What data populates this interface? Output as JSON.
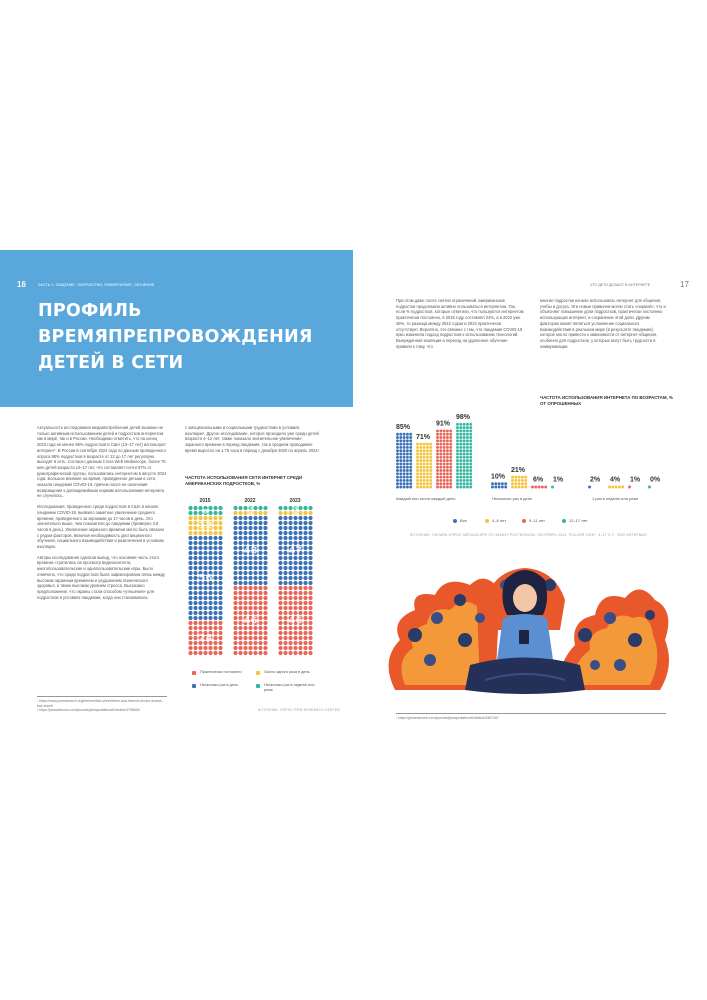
{
  "left_page": {
    "page_number": "16",
    "running_header": "ЧАСТЬ 1. ОБЩЕНИЕ, ТВОРЧЕСТВО, РАЗВЛЕЧЕНИЕ, ОБУЧЕНИЕ",
    "title_lines": [
      "ПРОФИЛЬ",
      "ВРЕМЯПРЕПРОВОЖДЕНИЯ",
      "ДЕТЕЙ В СЕТИ"
    ],
    "col1_paragraphs": [
      "Актуальность исследования медиапотребления детей вызвано не только активным использованием детей и подростков интернетом как в мире, так и в России. Необходимо отметить, что на конец 2023 года не менее 96% подростков в США (13–17 лет) используют интернет¹. В России в сентябре 2024 года по данным проведенного опроса 98% подростков в возрасте от 12 до 17 лет регулярно выходят в сеть. Согласно данным Cross Web Mediascope, более 75 млн детей возраста 12–17 лет, что составляет почти 97% от демографической группы, пользовались интернетом в августе 2024 года. Большое влияние на время, проведенное детьми в сети, оказала пандемия COVID-19, причем после ее окончания возвращения к доландемийным нормам использования интернета не случилось.",
      "Исследования, проведенное среди подростков в США в начале пандемии COVID-19, выявило заметное увеличение среднего времени, проведенного за экранами до 17 часов в день. Это значительно выше, чем показатели до пандемии (примерно 3.8 часов в день). Увеличение экранного времени могло быть связано с рядом факторов, включая необходимость дистанционного обучения, социального взаимодействия и развлечения в условиях изоляции.",
      "Авторы исследования сделали вывод, что основная часть этого времени «тратилась на просмотр видеоконтента, многопользовательские и однопользовательские игры. Было отмечено, что среди подростков была зафиксирована связь между высоким экранным временем и ухудшением психического здоровья, а также высоким уровнем стресса. Высказано предположение, что экраны стали способом «утешения» для подростков в условиях пандемии, когда они сталкивались"
    ],
    "col2_paragraph": "с эмоциональными и социальными трудностями в условиях изоляции¹. Другое исследование, которое проходило уже среди детей возраста 4–12 лет, также показало значительное увеличение экранного времени в период пандемии, так в среднем проводимое время выросло на 1.75 часа в период с декабря 2020 по апрель 2021².",
    "footnotes": [
      "¹ https://www.pewresearch.org/internet/fact-sheet/teens-and-internet-device-access-fact-sheet/",
      "² https://jamanetwork.com/journals/jamapediatrics/fullarticle/2786680"
    ],
    "chart": {
      "title": "ЧАСТОТА ИСПОЛЬЗОВАНИЯ СЕТИ ИНТЕРНЕТ СРЕДИ АМЕРИКАНСКИХ ПОДРОСТКОВ, %",
      "source": "ИСТОЧНИК: ОПРОС PEW RESEARCH CENTER",
      "legend": [
        "Практически постоянно",
        "Около одного раза в день",
        "Несколько раз в день",
        "Несколько раз в неделю или реже"
      ]
    }
  },
  "right_page": {
    "page_number": "17",
    "running_header": "ЧТО ДЕТИ ДЕЛАЮТ В ИНТЕРНЕТЕ",
    "col1_paragraph": "При этом даже после снятия ограничений, американские подростки продолжали активно пользоваться интернетом. Так, если % подростков, которые ответили, что пользуются интернетом практически постоянно, в 2015 году составлял 24%, а в 2022 уже 46%, то разница между 2022 годом и 2023 практически отсутствует. Вероятно, это связано с тем, что пандемия COVID-19 ярко изменила подход подростков к использованию технологий. Вынужденная изоляция и переход на удаленное обучение привели к тому, что",
    "col2_paragraph": "многие подростки начали использовать интернет для общения, учебы и досуга. Эти новые привычки могли стать «нормой», что и объясняет повышение доли подростков, практически постоянно использующих интернет, и сохранение этой доли. Другим фактором может являться усложнение социального взаимодействия в реальном мире (в результате пандемии), которое могло привести к зависимости от интернет-общения, особенно для подростков, у которых могут быть трудности в коммуникации.",
    "chart": {
      "title": "ЧАСТОТА ИСПОЛЬЗОВАНИЯ ИНТЕРНЕТА ПО ВОЗРАСТАМ, % ОТ ОПРОШЕННЫХ",
      "groups": [
        "Каждый или почти каждый день",
        "Несколько раз в день",
        "1 раз в неделю или реже"
      ],
      "legend": [
        "Все",
        "4–8 лет",
        "9–11 лет",
        "12–17 лет"
      ],
      "source": "ИСТОЧНИК: ОНЛАЙН-ОПРОС MEDIASCOPE ПО ЗАКАЗУ РОСТЕЛЕКОМ, СЕНТЯБРЬ 2024, РОССИЯ 100К+, 4–17 Л.Т., 3000 ИНТЕРВЬЮ"
    },
    "footnote": "¹ https://jamanetwork.com/journals/jamapediatrics/fullarticle/2807457"
  },
  "chart_data": [
    {
      "type": "bar",
      "title": "ЧАСТОТА ИСПОЛЬЗОВАНИЯ СЕТИ ИНТЕРНЕТ СРЕДИ АМЕРИКАНСКИХ ПОДРОСТКОВ, %",
      "categories": [
        "2015",
        "2022",
        "2023"
      ],
      "stacked": true,
      "series": [
        {
          "name": "Практически постоянно",
          "values": [
            24,
            46,
            46
          ]
        },
        {
          "name": "Несколько раз в день",
          "values": [
            56,
            48,
            47
          ]
        },
        {
          "name": "Около одного раза в день",
          "values": [
            12,
            4,
            4
          ]
        },
        {
          "name": "Несколько раз в неделю или реже",
          "values": [
            8,
            2,
            3
          ]
        }
      ],
      "colors": [
        "#e8665a",
        "#3d72b8",
        "#f4c542",
        "#35b8a0"
      ],
      "value_labels": {
        "Практически постоянно": [
          "24",
          "46",
          "46"
        ],
        "Несколько раз в день": [
          "56",
          "48",
          "47"
        ],
        "Около одного раза в день": [
          "12",
          "4",
          "4"
        ],
        "Несколько раз в неделю или реже": [
          "8",
          "2",
          "3"
        ]
      }
    },
    {
      "type": "bar",
      "title": "ЧАСТОТА ИСПОЛЬЗОВАНИЯ ИНТЕРНЕТА ПО ВОЗРАСТАМ, % ОТ ОПРОШЕННЫХ",
      "categories": [
        "Каждый или почти каждый день",
        "Несколько раз в день",
        "1 раз в неделю или реже"
      ],
      "series": [
        {
          "name": "Все",
          "values": [
            85,
            10,
            2
          ]
        },
        {
          "name": "4–8 лет",
          "values": [
            71,
            21,
            4
          ]
        },
        {
          "name": "9–11 лет",
          "values": [
            91,
            6,
            1
          ]
        },
        {
          "name": "12–17 лет",
          "values": [
            98,
            1,
            0
          ]
        }
      ],
      "colors": [
        "#3d72b8",
        "#f4c542",
        "#e8665a",
        "#35b8a0"
      ],
      "value_labels": [
        [
          "85%",
          "71%",
          "91%",
          "98%"
        ],
        [
          "10%",
          "21%",
          "6%",
          "1%"
        ],
        [
          "2%",
          "4%",
          "1%",
          "0%"
        ]
      ]
    }
  ]
}
